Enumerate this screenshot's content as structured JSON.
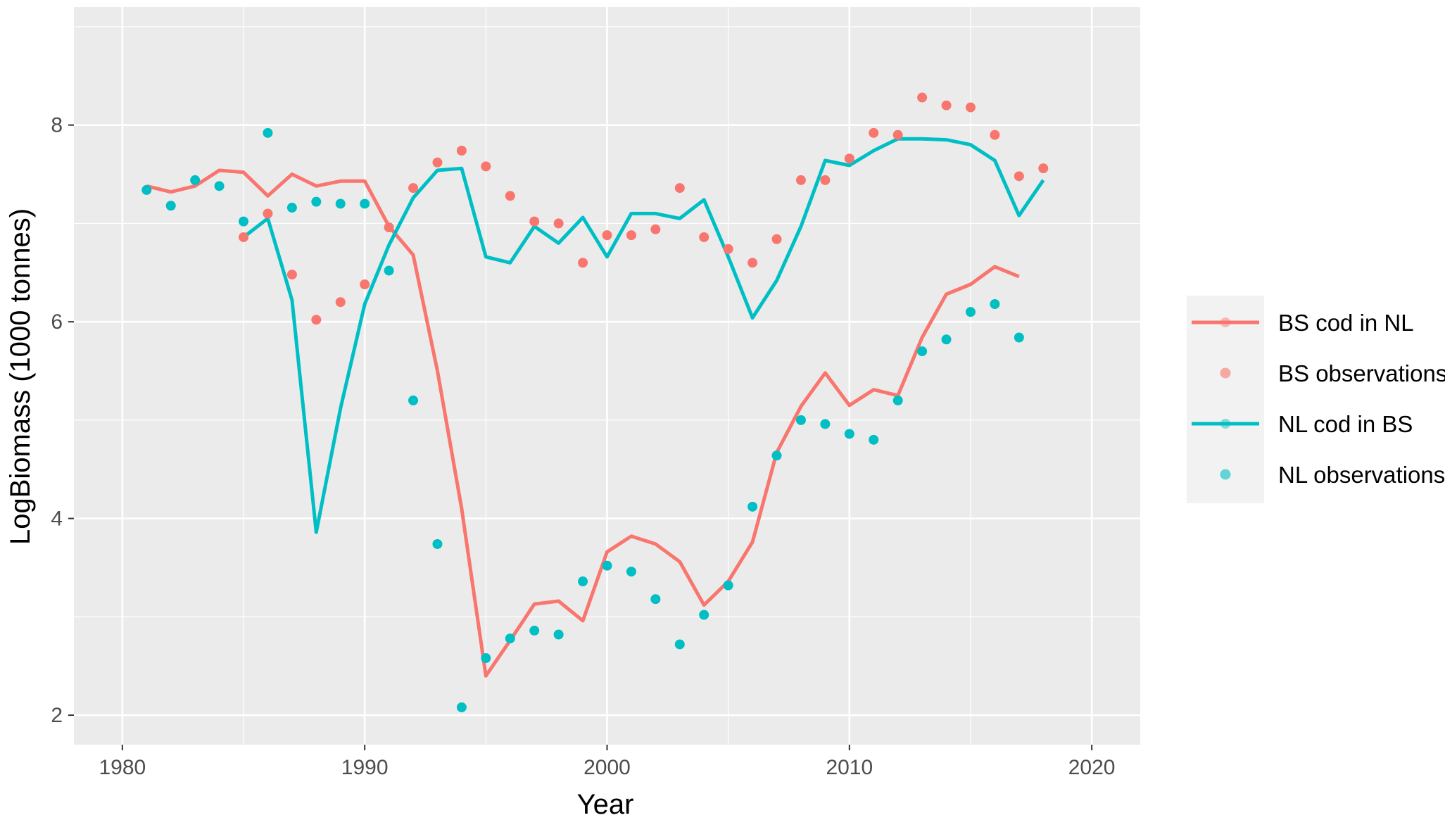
{
  "chart_data": {
    "type": "line",
    "xlabel": "Year",
    "ylabel": "LogBiomass (1000 tonnes)",
    "xlim": [
      1978,
      2022
    ],
    "ylim": [
      1.7,
      9.2
    ],
    "x_ticks": [
      1980,
      1990,
      2000,
      2010,
      2020
    ],
    "y_ticks": [
      2,
      4,
      6,
      8
    ],
    "grid": true,
    "legend_position": "right",
    "colors": {
      "bs": "#F8766D",
      "nl": "#00BFC4",
      "panel": "#EBEBEB",
      "grid": "#FFFFFF"
    },
    "legend": [
      {
        "label": "BS cod in NL",
        "kind": "line",
        "color": "#F8766D"
      },
      {
        "label": "BS observations",
        "kind": "point",
        "color": "#F8766D"
      },
      {
        "label": "NL cod in BS",
        "kind": "line",
        "color": "#00BFC4"
      },
      {
        "label": "NL observations",
        "kind": "point",
        "color": "#00BFC4"
      }
    ],
    "series": [
      {
        "name": "BS cod in NL",
        "kind": "line",
        "color": "#F8766D",
        "x": [
          1981,
          1982,
          1983,
          1984,
          1985,
          1986,
          1987,
          1988,
          1989,
          1990,
          1991,
          1992,
          1993,
          1994,
          1995,
          1996,
          1997,
          1998,
          1999,
          2000,
          2001,
          2002,
          2003,
          2004,
          2005,
          2006,
          2007,
          2008,
          2009,
          2010,
          2011,
          2012,
          2013,
          2014,
          2015,
          2016,
          2017
        ],
        "y": [
          7.38,
          7.32,
          7.38,
          7.54,
          7.52,
          7.28,
          7.5,
          7.38,
          7.43,
          7.43,
          6.97,
          6.68,
          5.5,
          4.1,
          2.4,
          2.76,
          3.13,
          3.16,
          2.96,
          3.66,
          3.82,
          3.74,
          3.56,
          3.12,
          3.36,
          3.76,
          4.67,
          5.14,
          5.48,
          5.15,
          5.31,
          5.25,
          5.84,
          6.28,
          6.38,
          6.56,
          6.46
        ]
      },
      {
        "name": "BS observations",
        "kind": "points",
        "color": "#F8766D",
        "x": [
          1985,
          1986,
          1987,
          1988,
          1989,
          1990,
          1991,
          1992,
          1993,
          1994,
          1995,
          1996,
          1997,
          1998,
          1999,
          2000,
          2001,
          2002,
          2003,
          2004,
          2005,
          2006,
          2007,
          2008,
          2009,
          2010,
          2011,
          2012,
          2013,
          2014,
          2015,
          2016,
          2017,
          2018
        ],
        "y": [
          6.86,
          7.1,
          6.48,
          6.02,
          6.2,
          6.38,
          6.96,
          7.36,
          7.62,
          7.74,
          7.58,
          7.28,
          7.02,
          7.0,
          6.6,
          6.88,
          6.88,
          6.94,
          7.36,
          6.86,
          6.74,
          6.6,
          6.84,
          7.44,
          7.44,
          7.66,
          7.92,
          7.9,
          8.28,
          8.2,
          8.18,
          7.9,
          7.48,
          7.56
        ]
      },
      {
        "name": "NL cod in BS",
        "kind": "line",
        "color": "#00BFC4",
        "x": [
          1985,
          1986,
          1987,
          1988,
          1989,
          1990,
          1991,
          1992,
          1993,
          1994,
          1995,
          1996,
          1997,
          1998,
          1999,
          2000,
          2001,
          2002,
          2003,
          2004,
          2005,
          2006,
          2007,
          2008,
          2009,
          2010,
          2011,
          2012,
          2013,
          2014,
          2015,
          2016,
          2017,
          2018
        ],
        "y": [
          6.86,
          7.05,
          6.22,
          3.86,
          5.12,
          6.18,
          6.78,
          7.26,
          7.54,
          7.56,
          6.66,
          6.6,
          6.97,
          6.8,
          7.06,
          6.66,
          7.1,
          7.1,
          7.05,
          7.24,
          6.66,
          6.04,
          6.42,
          6.97,
          7.64,
          7.59,
          7.74,
          7.86,
          7.86,
          7.85,
          7.8,
          7.64,
          7.08,
          7.44
        ]
      },
      {
        "name": "NL observations",
        "kind": "points",
        "color": "#00BFC4",
        "x": [
          1981,
          1982,
          1983,
          1984,
          1985,
          1986,
          1987,
          1988,
          1989,
          1990,
          1991,
          1992,
          1993,
          1994,
          1995,
          1996,
          1997,
          1998,
          1999,
          2000,
          2001,
          2002,
          2003,
          2004,
          2005,
          2006,
          2007,
          2008,
          2009,
          2010,
          2011,
          2012,
          2013,
          2014,
          2015,
          2016,
          2017
        ],
        "y": [
          7.34,
          7.18,
          7.44,
          7.38,
          7.02,
          7.92,
          7.16,
          7.22,
          7.2,
          7.2,
          6.52,
          5.2,
          3.74,
          2.08,
          2.58,
          2.78,
          2.86,
          2.82,
          3.36,
          3.52,
          3.46,
          3.18,
          2.72,
          3.02,
          3.32,
          4.12,
          4.64,
          5.0,
          4.96,
          4.86,
          4.8,
          5.2,
          5.7,
          5.82,
          6.1,
          6.18,
          5.84
        ]
      }
    ]
  }
}
